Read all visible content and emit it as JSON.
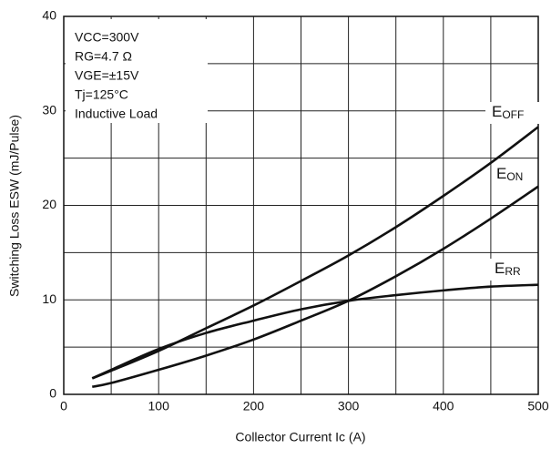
{
  "chart_data": {
    "type": "line",
    "xlabel": "Collector Current Ic  (A)",
    "ylabel": "Switching Loss ESW (mJ/Pulse)",
    "annotations": [
      "VCC=300V",
      "RG=4.7 Ω",
      "VGE=±15V",
      "Tj=125°C",
      "Inductive Load"
    ],
    "x": [
      30,
      50,
      100,
      150,
      200,
      250,
      300,
      350,
      400,
      450,
      500
    ],
    "series": [
      {
        "name": "E",
        "sub": "OFF",
        "color": "#111111",
        "values": [
          1.7,
          2.5,
          4.6,
          7.0,
          9.4,
          12.0,
          14.7,
          17.7,
          21.0,
          24.5,
          28.3
        ]
      },
      {
        "name": "E",
        "sub": "ON",
        "color": "#111111",
        "values": [
          0.8,
          1.2,
          2.6,
          4.1,
          5.8,
          7.8,
          9.9,
          12.5,
          15.4,
          18.6,
          22.0
        ]
      },
      {
        "name": "E",
        "sub": "RR",
        "color": "#111111",
        "values": [
          1.7,
          2.6,
          4.8,
          6.5,
          7.8,
          9.0,
          9.9,
          10.5,
          11.0,
          11.4,
          11.6
        ]
      }
    ],
    "xlim": [
      0,
      500
    ],
    "xticks": [
      0,
      100,
      200,
      300,
      400,
      500
    ],
    "xgrid": [
      50,
      150,
      250,
      350,
      450
    ],
    "ylim": [
      0,
      40
    ],
    "yticks": [
      0,
      10,
      20,
      30,
      40
    ],
    "ygrid": [
      5,
      15,
      25,
      35
    ],
    "grid": true
  }
}
